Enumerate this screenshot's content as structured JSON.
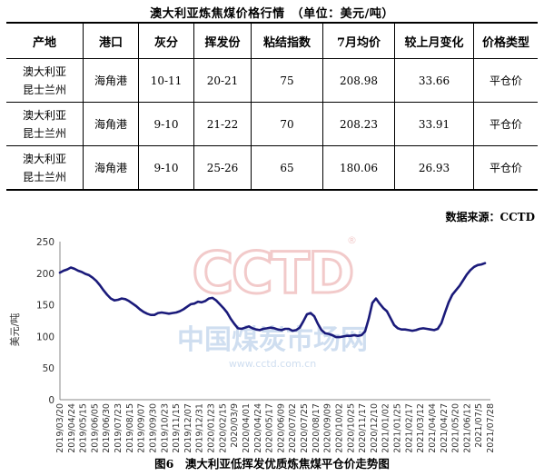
{
  "title": "澳大利亚炼焦煤价格行情　（单位：美元/吨）",
  "table": {
    "headers": [
      "产地",
      "港口",
      "灰分",
      "挥发份",
      "粘结指数",
      "7月均价",
      "较上月变化",
      "价格类型"
    ],
    "rows": [
      {
        "origin_line1": "澳大利亚",
        "origin_line2": "昆士兰州",
        "port": "海角港",
        "ash": "10-11",
        "volatile": "20-21",
        "caking": "75",
        "avg": "208.98",
        "change": "33.66",
        "type": "平仓价"
      },
      {
        "origin_line1": "澳大利亚",
        "origin_line2": "昆士兰州",
        "port": "海角港",
        "ash": "9-10",
        "volatile": "21-22",
        "caking": "70",
        "avg": "208.23",
        "change": "33.91",
        "type": "平仓价"
      },
      {
        "origin_line1": "澳大利亚",
        "origin_line2": "昆士兰州",
        "port": "海角港",
        "ash": "9-10",
        "volatile": "25-26",
        "caking": "65",
        "avg": "180.06",
        "change": "26.93",
        "type": "平仓价"
      }
    ]
  },
  "source": "数据来源：CCTD",
  "caption": "图6　澳大利亚低挥发优质炼焦煤平仓价走势图",
  "watermark": {
    "logo": "CCTD",
    "reg": "®",
    "cn": "中国煤炭市场网",
    "url": "www.cctd.com.cn"
  },
  "colors": {
    "line": "#1a1a7a",
    "watermark_red": "#e8a0a0",
    "watermark_blue": "#a9c4e4"
  },
  "chart_data": {
    "type": "line",
    "title": "",
    "xlabel": "",
    "ylabel": "美元/吨",
    "ylim": [
      0,
      250
    ],
    "yticks": [
      0,
      50,
      100,
      150,
      200,
      250
    ],
    "grid": false,
    "x_tick_labels": [
      "2019/03/20",
      "2019/04/24",
      "2019/05/15",
      "2019/06/05",
      "2019/06/30",
      "2019/07/23",
      "2019/08/15",
      "2019/09/07",
      "2019/09/30",
      "2019/10/23",
      "2019/11/15",
      "2019/12/07",
      "2019/12/31",
      "2020/01/23",
      "2020/02/15",
      "2020/03/9",
      "2020/04/01",
      "2020/04/24",
      "2020/05/17",
      "2020/06/09",
      "2020/07/02",
      "2020/07/25",
      "2020/08/17",
      "2020/09/09",
      "2020/10/02",
      "2020/10/25",
      "2020/11/17",
      "2020/12/10",
      "2021/01/02",
      "2021/01/25",
      "2021/02/17",
      "2021/03/12",
      "2021/04/04",
      "2021/04/27",
      "2021/05/20",
      "2021/06/12",
      "2021/07/5",
      "2021/07/28"
    ],
    "series": [
      {
        "values": [
          201,
          204,
          206,
          209,
          207,
          204,
          202,
          199,
          197,
          193,
          188,
          181,
          173,
          166,
          160,
          157,
          158,
          160,
          159,
          156,
          152,
          148,
          143,
          139,
          136,
          134,
          134,
          137,
          138,
          137,
          136,
          137,
          138,
          140,
          143,
          147,
          151,
          152,
          155,
          154,
          156,
          160,
          161,
          157,
          151,
          145,
          138,
          128,
          120,
          113,
          112,
          114,
          116,
          113,
          111,
          110,
          112,
          113,
          114,
          113,
          111,
          110,
          112,
          112,
          109,
          110,
          114,
          124,
          135,
          137,
          132,
          120,
          110,
          105,
          104,
          102,
          99,
          99,
          100,
          101,
          101,
          102,
          101,
          102,
          108,
          128,
          153,
          160,
          152,
          145,
          140,
          129,
          118,
          113,
          111,
          111,
          110,
          109,
          110,
          112,
          113,
          112,
          111,
          110,
          112,
          121,
          138,
          154,
          166,
          173,
          180,
          189,
          198,
          205,
          210,
          213,
          214,
          216
        ]
      }
    ]
  }
}
